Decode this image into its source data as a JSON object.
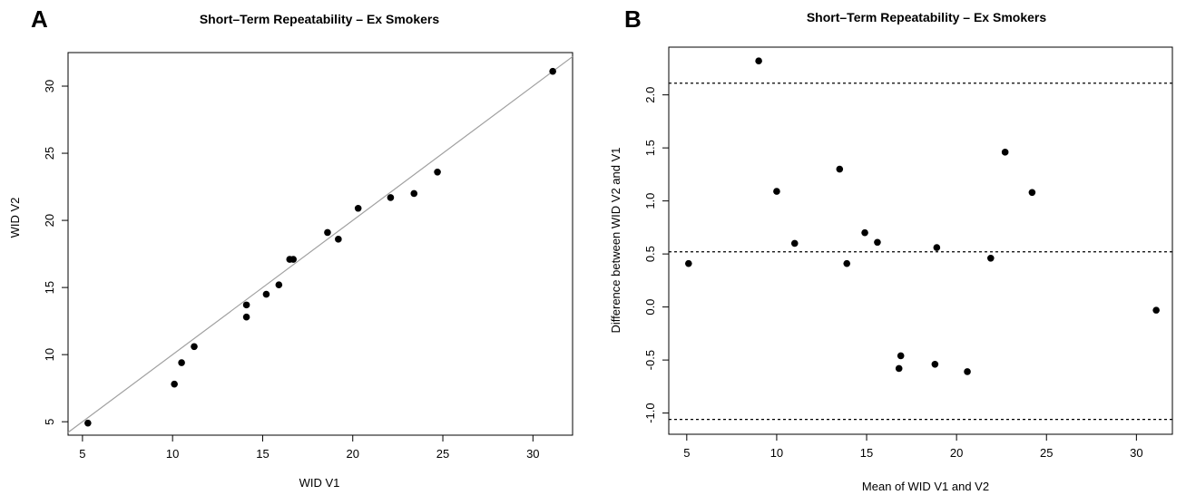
{
  "chart_data": [
    {
      "type": "scatter",
      "panel": "A",
      "title": "Short–Term Repeatability – Ex Smokers",
      "xlabel": "WID V1",
      "ylabel": "WID V2",
      "xlim": [
        4.2,
        32.2
      ],
      "ylim": [
        4.0,
        32.5
      ],
      "xticks": [
        5,
        10,
        15,
        20,
        25,
        30
      ],
      "yticks": [
        5,
        10,
        15,
        20,
        25,
        30
      ],
      "xtick_labels": [
        "5",
        "10",
        "15",
        "20",
        "25",
        "30"
      ],
      "ytick_labels": [
        "5",
        "10",
        "15",
        "20",
        "25",
        "30"
      ],
      "grid": false,
      "identity_line": true,
      "line_color": "#a0a0a0",
      "point_color": "#000000",
      "points": [
        {
          "x": 5.3,
          "y": 4.9
        },
        {
          "x": 10.1,
          "y": 7.8
        },
        {
          "x": 10.5,
          "y": 9.4
        },
        {
          "x": 11.2,
          "y": 10.6
        },
        {
          "x": 14.1,
          "y": 13.7
        },
        {
          "x": 14.1,
          "y": 12.8
        },
        {
          "x": 15.2,
          "y": 14.5
        },
        {
          "x": 15.9,
          "y": 15.2
        },
        {
          "x": 16.5,
          "y": 17.1
        },
        {
          "x": 16.7,
          "y": 17.1
        },
        {
          "x": 18.6,
          "y": 19.1
        },
        {
          "x": 19.2,
          "y": 18.6
        },
        {
          "x": 20.3,
          "y": 20.9
        },
        {
          "x": 22.1,
          "y": 21.7
        },
        {
          "x": 23.4,
          "y": 22.0
        },
        {
          "x": 24.7,
          "y": 23.6
        },
        {
          "x": 31.1,
          "y": 31.1
        }
      ]
    },
    {
      "type": "scatter",
      "panel": "B",
      "title": "Short–Term Repeatability – Ex Smokers",
      "xlabel": "Mean of WID V1 and V2",
      "ylabel": "Difference between WID V2 and V1",
      "xlim": [
        4.0,
        32.0
      ],
      "ylim": [
        -1.2,
        2.45
      ],
      "xticks": [
        5,
        10,
        15,
        20,
        25,
        30
      ],
      "yticks": [
        -1.0,
        -0.5,
        0.0,
        0.5,
        1.0,
        1.5,
        2.0
      ],
      "xtick_labels": [
        "5",
        "10",
        "15",
        "20",
        "25",
        "30"
      ],
      "ytick_labels": [
        "-1.0",
        "-0.5",
        "0.0",
        "0.5",
        "1.0",
        "1.5",
        "2.0"
      ],
      "grid": false,
      "reference_lines": [
        2.11,
        0.52,
        -1.06
      ],
      "reference_line_style": "dotted",
      "point_color": "#000000",
      "points": [
        {
          "x": 5.1,
          "y": 0.41
        },
        {
          "x": 9.0,
          "y": 2.32
        },
        {
          "x": 10.0,
          "y": 1.09
        },
        {
          "x": 11.0,
          "y": 0.6
        },
        {
          "x": 13.5,
          "y": 1.3
        },
        {
          "x": 13.9,
          "y": 0.41
        },
        {
          "x": 14.9,
          "y": 0.7
        },
        {
          "x": 15.6,
          "y": 0.61
        },
        {
          "x": 16.8,
          "y": -0.58
        },
        {
          "x": 16.9,
          "y": -0.46
        },
        {
          "x": 18.8,
          "y": -0.54
        },
        {
          "x": 18.9,
          "y": 0.56
        },
        {
          "x": 20.6,
          "y": -0.61
        },
        {
          "x": 21.9,
          "y": 0.46
        },
        {
          "x": 22.7,
          "y": 1.46
        },
        {
          "x": 24.2,
          "y": 1.08
        },
        {
          "x": 31.1,
          "y": -0.03
        }
      ]
    }
  ]
}
